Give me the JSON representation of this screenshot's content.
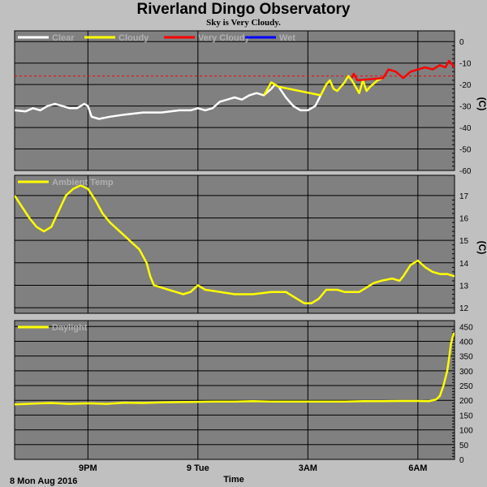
{
  "title": "Riverland Dingo Observatory",
  "subtitle": "Sky is Very Cloudy.",
  "x_axis": {
    "label": "Time",
    "date_label": "8 Mon Aug 2016",
    "ticks": [
      {
        "t": 2,
        "label": "9PM"
      },
      {
        "t": 5,
        "label": "9 Tue"
      },
      {
        "t": 8,
        "label": "3AM"
      },
      {
        "t": 11,
        "label": "6AM"
      }
    ],
    "range": [
      0,
      12
    ]
  },
  "colors": {
    "background": "#c0c0c0",
    "plot_bg": "#808080",
    "grid": "#000000",
    "clear": "#ffffff",
    "cloudy": "#ffff00",
    "very_cloudy": "#ff0000",
    "wet": "#0000ff"
  },
  "chart_data": [
    {
      "type": "line",
      "ylabel": "(C)",
      "ylim": [
        -60,
        5
      ],
      "yticks": [
        0,
        -10,
        -20,
        -30,
        -40,
        -50,
        -60
      ],
      "legend": [
        {
          "label": "Clear",
          "color": "#ffffff"
        },
        {
          "label": "Cloudy",
          "color": "#ffff00"
        },
        {
          "label": "Very Cloudy",
          "color": "#ff0000"
        },
        {
          "label": "Wet",
          "color": "#0000ff"
        }
      ],
      "threshold": -16,
      "series": [
        {
          "name": "Clear",
          "color": "#ffffff",
          "points": [
            [
              0,
              -32
            ],
            [
              0.3,
              -32.5
            ],
            [
              0.5,
              -31
            ],
            [
              0.7,
              -32
            ],
            [
              0.9,
              -30
            ],
            [
              1.1,
              -29
            ],
            [
              1.3,
              -30
            ],
            [
              1.5,
              -31
            ],
            [
              1.7,
              -31
            ],
            [
              1.9,
              -29
            ],
            [
              2.0,
              -30
            ],
            [
              2.1,
              -35
            ],
            [
              2.3,
              -36
            ],
            [
              2.6,
              -35
            ],
            [
              3.0,
              -34
            ],
            [
              3.5,
              -33
            ],
            [
              4.0,
              -33
            ],
            [
              4.5,
              -32
            ],
            [
              4.8,
              -32
            ],
            [
              5.0,
              -31
            ],
            [
              5.2,
              -32
            ],
            [
              5.4,
              -31
            ],
            [
              5.6,
              -28
            ],
            [
              5.8,
              -27
            ],
            [
              6.0,
              -26
            ],
            [
              6.2,
              -27
            ],
            [
              6.4,
              -25
            ],
            [
              6.6,
              -24
            ],
            [
              6.8,
              -25
            ],
            [
              7.0,
              -22
            ],
            [
              7.1,
              -20
            ],
            [
              7.2,
              -21
            ],
            [
              7.4,
              -26
            ],
            [
              7.6,
              -30
            ],
            [
              7.8,
              -32
            ],
            [
              8.0,
              -32
            ],
            [
              8.2,
              -30
            ],
            [
              8.35,
              -25
            ]
          ]
        },
        {
          "name": "Cloudy",
          "color": "#ffff00",
          "points": [
            [
              6.8,
              -25
            ],
            [
              6.9,
              -22
            ],
            [
              7.0,
              -19
            ],
            [
              7.1,
              -20
            ],
            [
              7.2,
              -21
            ],
            [
              8.35,
              -25
            ],
            [
              8.5,
              -20
            ],
            [
              8.6,
              -18
            ],
            [
              8.7,
              -22
            ],
            [
              8.8,
              -23
            ],
            [
              8.9,
              -21
            ],
            [
              9.0,
              -19
            ],
            [
              9.1,
              -16
            ],
            [
              9.2,
              -18
            ],
            [
              9.4,
              -24
            ],
            [
              9.5,
              -18
            ],
            [
              9.6,
              -23
            ],
            [
              9.7,
              -21
            ],
            [
              9.9,
              -18
            ],
            [
              10.05,
              -17
            ]
          ]
        },
        {
          "name": "Very Cloudy",
          "color": "#ff0000",
          "points": [
            [
              9.2,
              -17
            ],
            [
              9.25,
              -15
            ],
            [
              9.35,
              -18
            ],
            [
              10.05,
              -17
            ],
            [
              10.2,
              -13
            ],
            [
              10.4,
              -14
            ],
            [
              10.6,
              -17
            ],
            [
              10.8,
              -14
            ],
            [
              11.0,
              -13
            ],
            [
              11.2,
              -12
            ],
            [
              11.4,
              -13
            ],
            [
              11.6,
              -11
            ],
            [
              11.75,
              -12
            ],
            [
              11.85,
              -9
            ],
            [
              11.95,
              -11
            ],
            [
              12.0,
              -12
            ]
          ]
        }
      ]
    },
    {
      "type": "line",
      "ylabel": "(C)",
      "ylim": [
        11.75,
        17.9
      ],
      "yticks": [
        17,
        16,
        15,
        14,
        13,
        12
      ],
      "legend": [
        {
          "label": "Ambient Temp",
          "color": "#ffff00"
        }
      ],
      "series": [
        {
          "name": "Ambient Temp",
          "color": "#ffff00",
          "points": [
            [
              0,
              17.0
            ],
            [
              0.2,
              16.5
            ],
            [
              0.4,
              16.0
            ],
            [
              0.6,
              15.6
            ],
            [
              0.8,
              15.4
            ],
            [
              1.0,
              15.6
            ],
            [
              1.2,
              16.3
            ],
            [
              1.4,
              17.0
            ],
            [
              1.6,
              17.3
            ],
            [
              1.8,
              17.45
            ],
            [
              2.0,
              17.3
            ],
            [
              2.2,
              16.8
            ],
            [
              2.4,
              16.2
            ],
            [
              2.6,
              15.8
            ],
            [
              2.8,
              15.5
            ],
            [
              3.0,
              15.2
            ],
            [
              3.2,
              14.9
            ],
            [
              3.4,
              14.6
            ],
            [
              3.6,
              14.0
            ],
            [
              3.7,
              13.4
            ],
            [
              3.8,
              13.0
            ],
            [
              4.0,
              12.9
            ],
            [
              4.2,
              12.8
            ],
            [
              4.4,
              12.7
            ],
            [
              4.6,
              12.6
            ],
            [
              4.8,
              12.7
            ],
            [
              5.0,
              13.0
            ],
            [
              5.2,
              12.8
            ],
            [
              5.6,
              12.7
            ],
            [
              6.0,
              12.6
            ],
            [
              6.5,
              12.6
            ],
            [
              7.0,
              12.7
            ],
            [
              7.4,
              12.7
            ],
            [
              7.6,
              12.5
            ],
            [
              7.9,
              12.2
            ],
            [
              8.1,
              12.2
            ],
            [
              8.3,
              12.4
            ],
            [
              8.5,
              12.8
            ],
            [
              8.8,
              12.8
            ],
            [
              9.0,
              12.7
            ],
            [
              9.4,
              12.7
            ],
            [
              9.6,
              12.9
            ],
            [
              9.8,
              13.1
            ],
            [
              10.0,
              13.2
            ],
            [
              10.3,
              13.3
            ],
            [
              10.5,
              13.2
            ],
            [
              10.6,
              13.4
            ],
            [
              10.8,
              13.9
            ],
            [
              11.0,
              14.1
            ],
            [
              11.2,
              13.8
            ],
            [
              11.4,
              13.6
            ],
            [
              11.6,
              13.5
            ],
            [
              11.8,
              13.5
            ],
            [
              12.0,
              13.4
            ]
          ]
        }
      ]
    },
    {
      "type": "line",
      "ylabel": "",
      "ylim": [
        0,
        470
      ],
      "yticks": [
        0,
        50,
        100,
        150,
        200,
        250,
        300,
        350,
        400,
        450
      ],
      "legend": [
        {
          "label": "Daylight",
          "color": "#ffff00"
        }
      ],
      "series": [
        {
          "name": "Daylight",
          "color": "#ffff00",
          "points": [
            [
              0,
              186
            ],
            [
              0.5,
              189
            ],
            [
              1.0,
              191
            ],
            [
              1.5,
              188
            ],
            [
              2.0,
              190
            ],
            [
              2.5,
              188
            ],
            [
              3.0,
              192
            ],
            [
              3.5,
              191
            ],
            [
              4.0,
              193
            ],
            [
              4.5,
              194
            ],
            [
              5.0,
              195
            ],
            [
              5.5,
              196
            ],
            [
              6.0,
              196
            ],
            [
              6.5,
              197
            ],
            [
              7.0,
              196
            ],
            [
              7.5,
              196
            ],
            [
              8.0,
              196
            ],
            [
              8.5,
              196
            ],
            [
              9.0,
              196
            ],
            [
              9.5,
              197
            ],
            [
              10.0,
              197
            ],
            [
              10.5,
              198
            ],
            [
              11.0,
              198
            ],
            [
              11.3,
              197
            ],
            [
              11.5,
              203
            ],
            [
              11.6,
              215
            ],
            [
              11.7,
              250
            ],
            [
              11.8,
              300
            ],
            [
              11.85,
              340
            ],
            [
              11.9,
              390
            ],
            [
              11.95,
              415
            ],
            [
              12.0,
              430
            ]
          ]
        }
      ]
    }
  ]
}
